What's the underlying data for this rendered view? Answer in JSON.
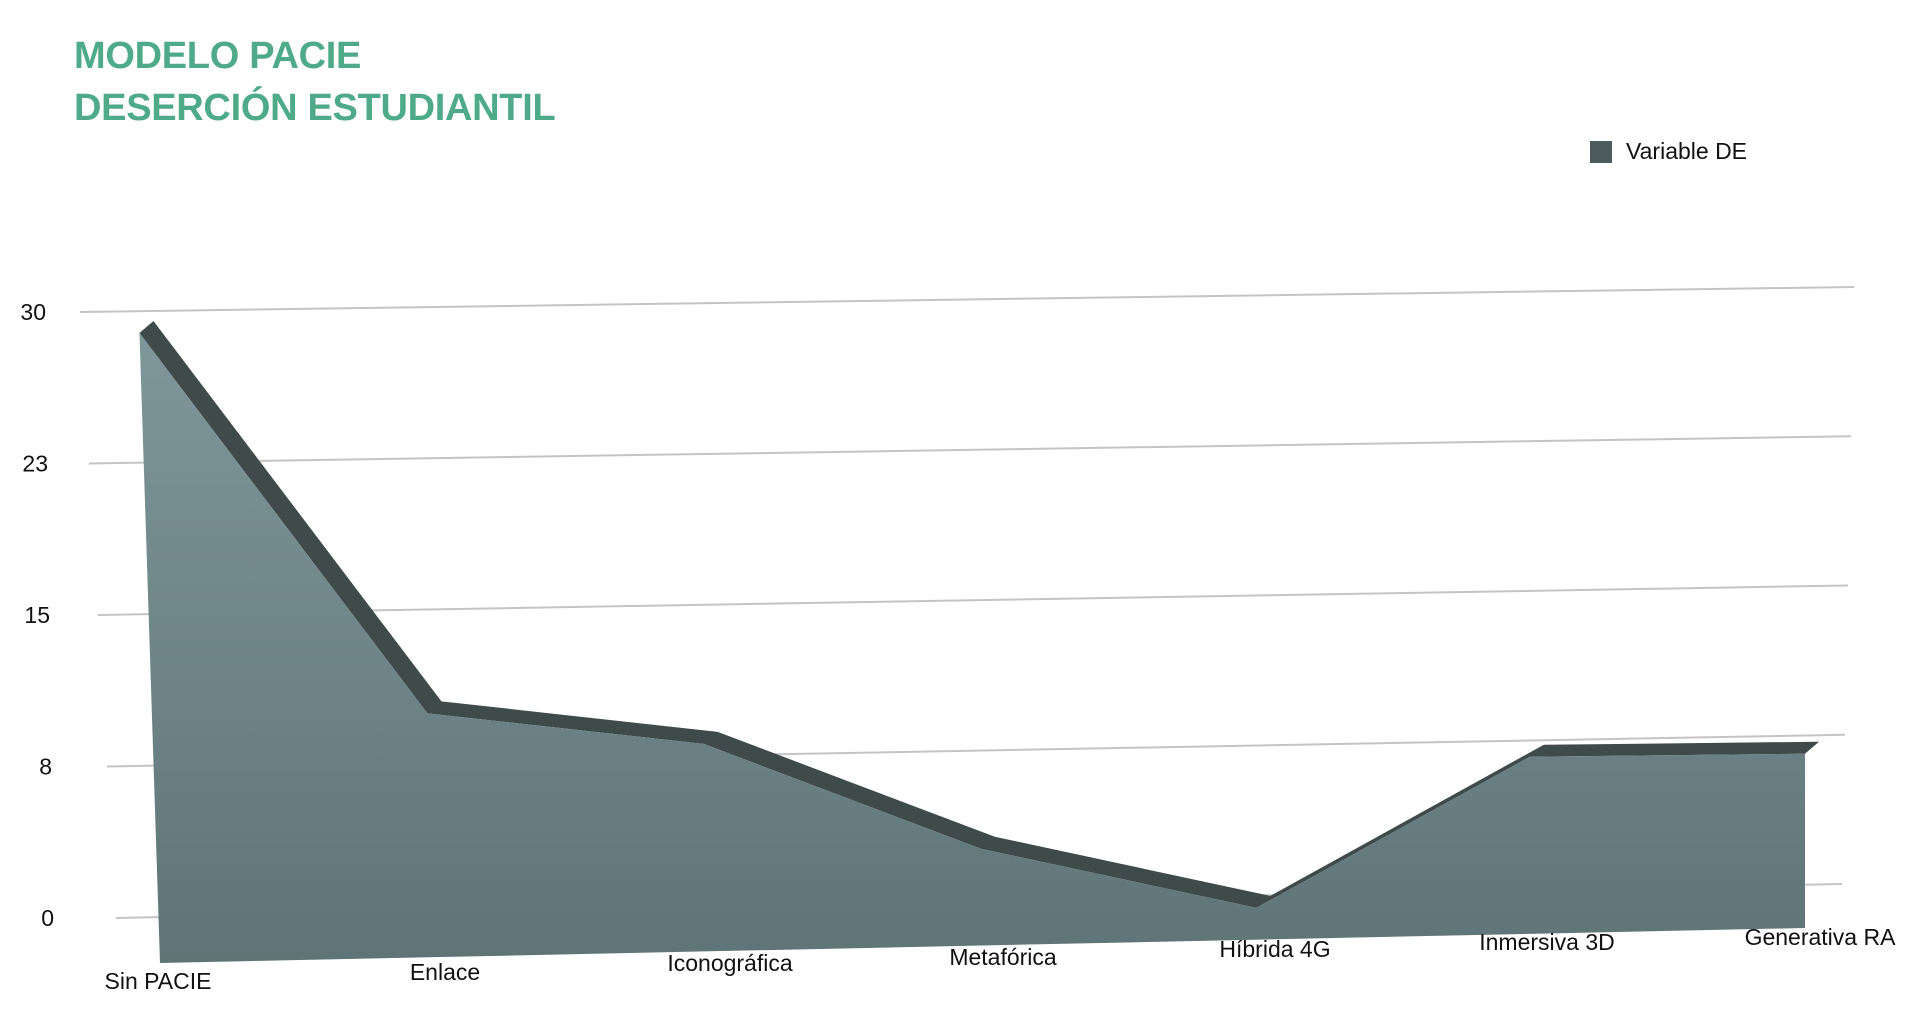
{
  "title_lines": [
    "MODELO PACIE",
    "DESERCIÓN ESTUDIANTIL"
  ],
  "legend": {
    "label": "Variable DE",
    "color": "#4e5b5c"
  },
  "colors": {
    "title": "#4faa8a",
    "area_top": "#7f979a",
    "area_bottom": "#5f7476",
    "edge": "#3f4a4b",
    "grid": "#c4c4c4"
  },
  "chart_data": {
    "type": "area",
    "title": "MODELO PACIE DESERCIÓN ESTUDIANTIL",
    "categories": [
      "Sin PACIE",
      "Enlace",
      "Iconográfica",
      "Metafórica",
      "Híbrida 4G",
      "Inmersiva 3D",
      "Generativa RA"
    ],
    "series": [
      {
        "name": "Variable DE",
        "values": [
          28,
          11,
          9.5,
          4.5,
          1.5,
          8.5,
          8.5
        ]
      }
    ],
    "y_ticks": [
      "0",
      "8",
      "15",
      "23",
      "30"
    ],
    "y_tick_values": [
      0,
      7.5,
      15,
      22.5,
      30
    ],
    "ylim": [
      0,
      30
    ],
    "grid": true,
    "legend_position": "top-right",
    "style": "3d-perspective"
  }
}
